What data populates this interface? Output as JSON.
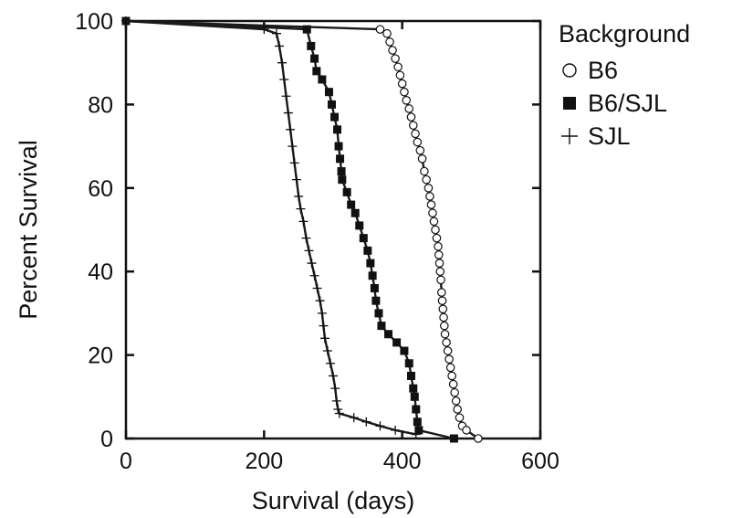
{
  "chart_data": {
    "type": "line",
    "title": "",
    "xlabel": "Survival (days)",
    "ylabel": "Percent Survival",
    "xlim": [
      0,
      600
    ],
    "ylim": [
      0,
      100
    ],
    "xticks": [
      0,
      200,
      400,
      600
    ],
    "yticks": [
      0,
      20,
      40,
      60,
      80,
      100
    ],
    "grid": false,
    "legend": {
      "title": "Background",
      "position": "right"
    },
    "series": [
      {
        "name": "B6",
        "marker": "open-circle",
        "color": "#1a1a1a",
        "points": [
          [
            0,
            100
          ],
          [
            368,
            98
          ],
          [
            378,
            97
          ],
          [
            382,
            95
          ],
          [
            386,
            93
          ],
          [
            390,
            91
          ],
          [
            394,
            89
          ],
          [
            397,
            87
          ],
          [
            400,
            85
          ],
          [
            403,
            83
          ],
          [
            406,
            81
          ],
          [
            410,
            79
          ],
          [
            413,
            77
          ],
          [
            416,
            75
          ],
          [
            419,
            73
          ],
          [
            422,
            71
          ],
          [
            426,
            69
          ],
          [
            429,
            67
          ],
          [
            432,
            64
          ],
          [
            435,
            62
          ],
          [
            438,
            60
          ],
          [
            440,
            58
          ],
          [
            442,
            56
          ],
          [
            444,
            54
          ],
          [
            446,
            52
          ],
          [
            448,
            50
          ],
          [
            450,
            48
          ],
          [
            452,
            46
          ],
          [
            453,
            44
          ],
          [
            454,
            42
          ],
          [
            455,
            40
          ],
          [
            456,
            38
          ],
          [
            457,
            35
          ],
          [
            458,
            33
          ],
          [
            459,
            31
          ],
          [
            460,
            29
          ],
          [
            461,
            27
          ],
          [
            462,
            25
          ],
          [
            464,
            23
          ],
          [
            466,
            21
          ],
          [
            468,
            19
          ],
          [
            470,
            17
          ],
          [
            472,
            15
          ],
          [
            474,
            13
          ],
          [
            476,
            11
          ],
          [
            478,
            9
          ],
          [
            480,
            7
          ],
          [
            483,
            5
          ],
          [
            487,
            3
          ],
          [
            493,
            2
          ],
          [
            510,
            0
          ]
        ]
      },
      {
        "name": "B6/SJL",
        "marker": "filled-square",
        "color": "#1a1a1a",
        "points": [
          [
            0,
            100
          ],
          [
            262,
            98
          ],
          [
            268,
            94
          ],
          [
            273,
            91
          ],
          [
            276,
            88
          ],
          [
            284,
            86
          ],
          [
            294,
            83
          ],
          [
            298,
            80
          ],
          [
            302,
            77
          ],
          [
            306,
            74
          ],
          [
            308,
            70
          ],
          [
            310,
            67
          ],
          [
            312,
            64
          ],
          [
            313,
            62
          ],
          [
            320,
            59
          ],
          [
            326,
            56
          ],
          [
            332,
            54
          ],
          [
            338,
            51
          ],
          [
            344,
            48
          ],
          [
            350,
            45
          ],
          [
            354,
            42
          ],
          [
            357,
            39
          ],
          [
            360,
            36
          ],
          [
            362,
            33
          ],
          [
            366,
            30
          ],
          [
            370,
            27
          ],
          [
            380,
            25
          ],
          [
            392,
            23
          ],
          [
            403,
            21
          ],
          [
            410,
            18
          ],
          [
            413,
            15
          ],
          [
            416,
            12
          ],
          [
            418,
            10
          ],
          [
            420,
            7
          ],
          [
            422,
            4
          ],
          [
            424,
            2
          ],
          [
            475,
            0
          ]
        ]
      },
      {
        "name": "SJL",
        "marker": "plus",
        "color": "#1a1a1a",
        "points": [
          [
            0,
            100
          ],
          [
            200,
            98
          ],
          [
            218,
            97
          ],
          [
            222,
            94
          ],
          [
            226,
            90
          ],
          [
            229,
            86
          ],
          [
            232,
            82
          ],
          [
            235,
            78
          ],
          [
            238,
            74
          ],
          [
            241,
            70
          ],
          [
            244,
            66
          ],
          [
            247,
            62
          ],
          [
            250,
            58
          ],
          [
            253,
            55
          ],
          [
            257,
            52
          ],
          [
            261,
            48
          ],
          [
            265,
            45
          ],
          [
            269,
            42
          ],
          [
            273,
            39
          ],
          [
            277,
            36
          ],
          [
            281,
            33
          ],
          [
            284,
            30
          ],
          [
            286,
            27
          ],
          [
            288,
            24
          ],
          [
            292,
            21
          ],
          [
            296,
            18
          ],
          [
            300,
            15
          ],
          [
            303,
            12
          ],
          [
            305,
            9
          ],
          [
            307,
            7
          ],
          [
            309,
            6
          ],
          [
            330,
            5
          ],
          [
            348,
            4
          ],
          [
            368,
            3
          ],
          [
            390,
            2
          ],
          [
            420,
            1
          ]
        ]
      }
    ]
  }
}
